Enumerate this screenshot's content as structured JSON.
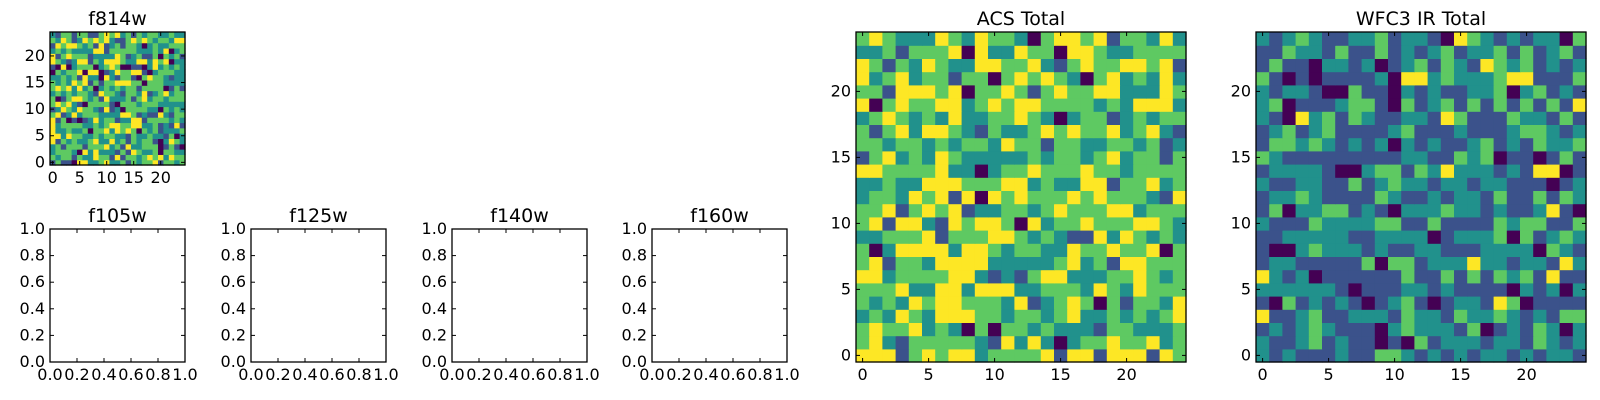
{
  "colormap": {
    "name": "viridis",
    "stops": [
      "#440154",
      "#3b528b",
      "#21918c",
      "#5ec962",
      "#fde725"
    ]
  },
  "chart_data": [
    {
      "type": "heatmap",
      "id": "f814w",
      "title": "f814w",
      "grid_size": 25,
      "seed": 814,
      "level_weights": [
        0.05,
        0.13,
        0.27,
        0.37,
        0.18
      ],
      "xlim": [
        -0.5,
        24.5
      ],
      "ylim": [
        -0.5,
        24.5
      ],
      "xticks": [
        0,
        5,
        10,
        15,
        20
      ],
      "yticks": [
        0,
        5,
        10,
        15,
        20
      ],
      "xticklabels": [
        "0",
        "5",
        "10",
        "15",
        "20"
      ],
      "yticklabels": [
        "0",
        "5",
        "10",
        "15",
        "20"
      ]
    },
    {
      "type": "heatmap",
      "id": "acs",
      "title": "ACS Total",
      "grid_size": 25,
      "seed": 1100,
      "level_weights": [
        0.03,
        0.08,
        0.22,
        0.4,
        0.27
      ],
      "xlim": [
        -0.5,
        24.5
      ],
      "ylim": [
        -0.5,
        24.5
      ],
      "xticks": [
        0,
        5,
        10,
        15,
        20
      ],
      "yticks": [
        0,
        5,
        10,
        15,
        20
      ],
      "xticklabels": [
        "0",
        "5",
        "10",
        "15",
        "20"
      ],
      "yticklabels": [
        "0",
        "5",
        "10",
        "15",
        "20"
      ]
    },
    {
      "type": "heatmap",
      "id": "wfc3",
      "title": "WFC3 IR Total",
      "grid_size": 25,
      "seed": 3030,
      "level_weights": [
        0.07,
        0.4,
        0.34,
        0.16,
        0.03
      ],
      "xlim": [
        -0.5,
        24.5
      ],
      "ylim": [
        -0.5,
        24.5
      ],
      "xticks": [
        0,
        5,
        10,
        15,
        20
      ],
      "yticks": [
        0,
        5,
        10,
        15,
        20
      ],
      "xticklabels": [
        "0",
        "5",
        "10",
        "15",
        "20"
      ],
      "yticklabels": [
        "0",
        "5",
        "10",
        "15",
        "20"
      ]
    },
    {
      "type": "empty",
      "id": "f105w",
      "title": "f105w",
      "xlim": [
        0,
        1
      ],
      "ylim": [
        0,
        1
      ],
      "xticklabels": [
        "0.0",
        "0.2",
        "0.4",
        "0.6",
        "0.8",
        "1.0"
      ],
      "yticklabels": [
        "0.0",
        "0.2",
        "0.4",
        "0.6",
        "0.8",
        "1.0"
      ]
    },
    {
      "type": "empty",
      "id": "f125w",
      "title": "f125w",
      "xlim": [
        0,
        1
      ],
      "ylim": [
        0,
        1
      ],
      "xticklabels": [
        "0.0",
        "0.2",
        "0.4",
        "0.6",
        "0.8",
        "1.0"
      ],
      "yticklabels": [
        "0.0",
        "0.2",
        "0.4",
        "0.6",
        "0.8",
        "1.0"
      ]
    },
    {
      "type": "empty",
      "id": "f140w",
      "title": "f140w",
      "xlim": [
        0,
        1
      ],
      "ylim": [
        0,
        1
      ],
      "xticklabels": [
        "0.0",
        "0.2",
        "0.4",
        "0.6",
        "0.8",
        "1.0"
      ],
      "yticklabels": [
        "0.0",
        "0.2",
        "0.4",
        "0.6",
        "0.8",
        "1.0"
      ]
    },
    {
      "type": "empty",
      "id": "f160w",
      "title": "f160w",
      "xlim": [
        0,
        1
      ],
      "ylim": [
        0,
        1
      ],
      "xticklabels": [
        "0.0",
        "0.2",
        "0.4",
        "0.6",
        "0.8",
        "1.0"
      ],
      "yticklabels": [
        "0.0",
        "0.2",
        "0.4",
        "0.6",
        "0.8",
        "1.0"
      ]
    }
  ]
}
